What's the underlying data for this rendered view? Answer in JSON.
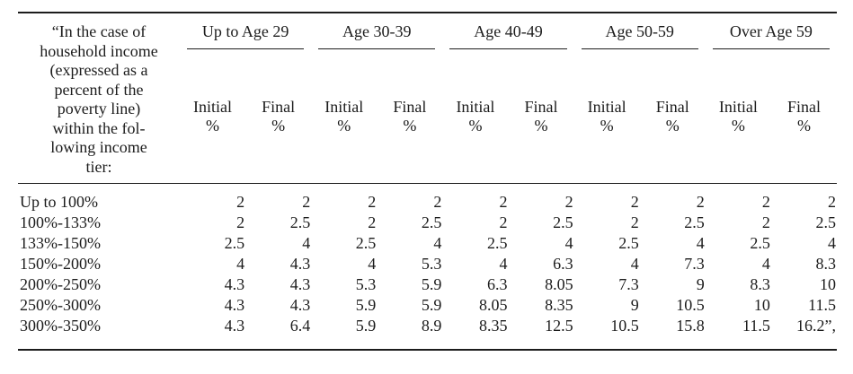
{
  "table": {
    "stub_header": {
      "lines": [
        "“In the case of",
        "household income",
        "(expressed as a",
        "percent of the",
        "poverty line)",
        "within the fol-",
        "lowing income",
        "tier:"
      ]
    },
    "age_groups": [
      "Up to Age 29",
      "Age 30-39",
      "Age 40-49",
      "Age 50-59",
      "Over Age 59"
    ],
    "sub_headers": {
      "initial": "Initial",
      "final": "Final",
      "percent": "%"
    },
    "rows": [
      {
        "tier": "Up to 100%",
        "values": [
          "2",
          "2",
          "2",
          "2",
          "2",
          "2",
          "2",
          "2",
          "2",
          "2"
        ]
      },
      {
        "tier": "100%-133%",
        "values": [
          "2",
          "2.5",
          "2",
          "2.5",
          "2",
          "2.5",
          "2",
          "2.5",
          "2",
          "2.5"
        ]
      },
      {
        "tier": "133%-150%",
        "values": [
          "2.5",
          "4",
          "2.5",
          "4",
          "2.5",
          "4",
          "2.5",
          "4",
          "2.5",
          "4"
        ]
      },
      {
        "tier": "150%-200%",
        "values": [
          "4",
          "4.3",
          "4",
          "5.3",
          "4",
          "6.3",
          "4",
          "7.3",
          "4",
          "8.3"
        ]
      },
      {
        "tier": "200%-250%",
        "values": [
          "4.3",
          "4.3",
          "5.3",
          "5.9",
          "6.3",
          "8.05",
          "7.3",
          "9",
          "8.3",
          "10"
        ]
      },
      {
        "tier": "250%-300%",
        "values": [
          "4.3",
          "4.3",
          "5.9",
          "5.9",
          "8.05",
          "8.35",
          "9",
          "10.5",
          "10",
          "11.5"
        ]
      },
      {
        "tier": "300%-350%",
        "values": [
          "4.3",
          "6.4",
          "5.9",
          "8.9",
          "8.35",
          "12.5",
          "10.5",
          "15.8",
          "11.5",
          "16.2”,"
        ]
      }
    ],
    "colors": {
      "text": "#1c1c1c",
      "rule": "#1c1c1c",
      "background": "#ffffff"
    }
  }
}
